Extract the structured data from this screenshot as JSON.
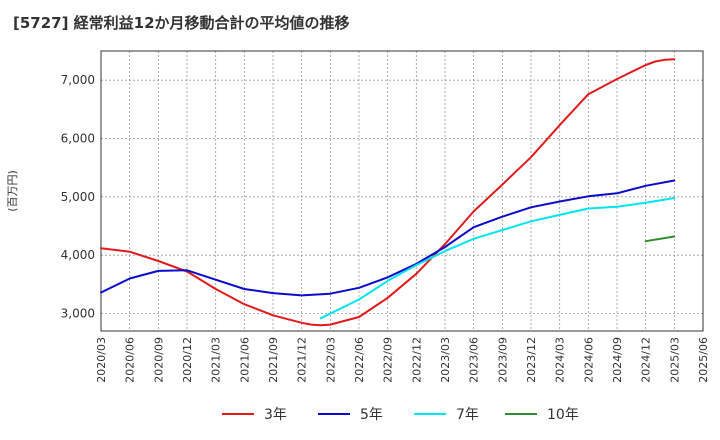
{
  "chart_data": {
    "type": "line",
    "title": "[5727]  経常利益12か月移動合計の平均値の推移",
    "ylabel": "(百万円)",
    "xlabel": "",
    "ylim": [
      2700,
      7500
    ],
    "yticks": [
      3000,
      4000,
      5000,
      6000,
      7000
    ],
    "ytick_labels": [
      "3,000",
      "4,000",
      "5,000",
      "6,000",
      "7,000"
    ],
    "xticks": [
      "2020/03",
      "2020/06",
      "2020/09",
      "2020/12",
      "2021/03",
      "2021/06",
      "2021/09",
      "2021/12",
      "2022/03",
      "2022/06",
      "2022/09",
      "2022/12",
      "2023/03",
      "2023/06",
      "2023/09",
      "2023/12",
      "2024/03",
      "2024/06",
      "2024/09",
      "2024/12",
      "2025/03",
      "2025/06"
    ],
    "grid": true,
    "legend_position": "bottom",
    "series": [
      {
        "name": "3年",
        "color": "#e31a1c",
        "x": [
          "2020/03",
          "2020/06",
          "2020/09",
          "2020/12",
          "2021/03",
          "2021/06",
          "2021/09",
          "2021/12",
          "2022/01",
          "2022/02",
          "2022/03",
          "2022/06",
          "2022/09",
          "2022/12",
          "2023/03",
          "2023/06",
          "2023/09",
          "2023/12",
          "2024/03",
          "2024/06",
          "2024/09",
          "2024/12",
          "2025/01",
          "2025/02",
          "2025/03"
        ],
        "values": [
          4120,
          4060,
          3900,
          3720,
          3420,
          3160,
          2970,
          2840,
          2810,
          2800,
          2810,
          2940,
          3270,
          3680,
          4190,
          4750,
          5210,
          5680,
          6230,
          6760,
          7020,
          7260,
          7320,
          7350,
          7360
        ]
      },
      {
        "name": "5年",
        "color": "#0b0bcc",
        "x": [
          "2020/03",
          "2020/06",
          "2020/09",
          "2020/12",
          "2021/03",
          "2021/06",
          "2021/09",
          "2021/12",
          "2022/03",
          "2022/06",
          "2022/09",
          "2022/12",
          "2023/03",
          "2023/06",
          "2023/09",
          "2023/12",
          "2024/03",
          "2024/06",
          "2024/09",
          "2024/12",
          "2025/03"
        ],
        "values": [
          3360,
          3600,
          3730,
          3740,
          3580,
          3420,
          3350,
          3310,
          3340,
          3440,
          3620,
          3850,
          4140,
          4480,
          4660,
          4820,
          4920,
          5010,
          5060,
          5190,
          5280
        ]
      },
      {
        "name": "7年",
        "color": "#00e5ee",
        "x": [
          "2022/02",
          "2022/06",
          "2022/09",
          "2022/12",
          "2023/03",
          "2023/06",
          "2023/09",
          "2023/12",
          "2024/03",
          "2024/06",
          "2024/09",
          "2024/12",
          "2025/03"
        ],
        "values": [
          2920,
          3240,
          3560,
          3830,
          4070,
          4280,
          4430,
          4580,
          4690,
          4800,
          4830,
          4900,
          4980
        ]
      },
      {
        "name": "10年",
        "color": "#2e8b2e",
        "x": [
          "2024/12",
          "2025/03"
        ],
        "values": [
          4240,
          4320
        ]
      }
    ]
  }
}
